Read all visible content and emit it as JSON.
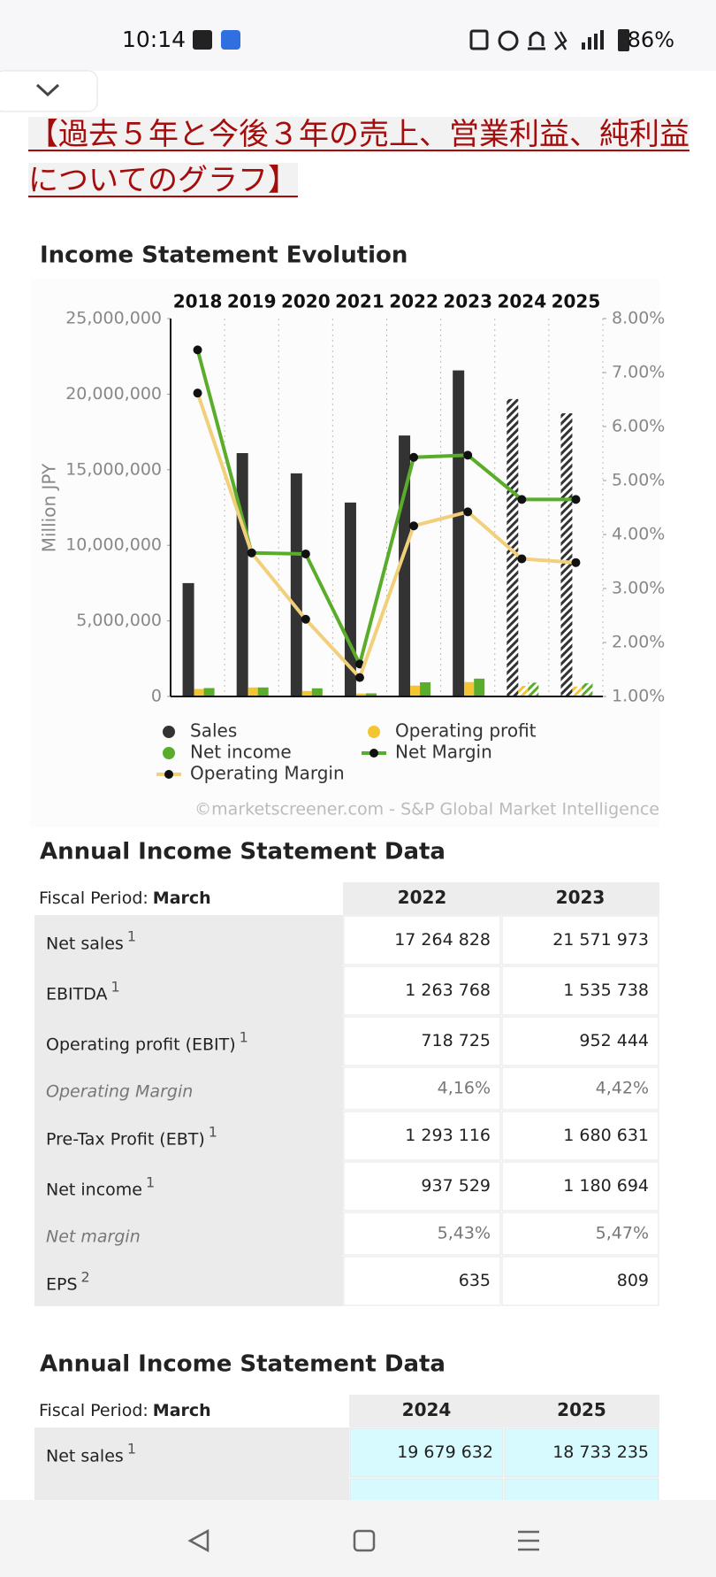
{
  "status_bar": {
    "time": "10:14",
    "battery": "86%"
  },
  "heading": "【過去５年と今後３年の売上、営業利益、純利益についてのグラフ】",
  "chart_data": {
    "type": "bar",
    "title": "Income Statement Evolution",
    "y_label": "Million JPY",
    "categories": [
      "2018",
      "2019",
      "2020",
      "2021",
      "2022",
      "2023",
      "2024",
      "2025"
    ],
    "estimate": [
      false,
      false,
      false,
      false,
      false,
      false,
      true,
      true
    ],
    "ylim": [
      0,
      25000000
    ],
    "yticks": [
      0,
      {
        "value": 5000000,
        "label": "5,000,000"
      },
      {
        "value": 10000000,
        "label": "10,000,000"
      },
      {
        "value": 15000000,
        "label": "15,000,000"
      },
      {
        "value": 20000000,
        "label": "20,000,000"
      },
      {
        "value": 25000000,
        "label": "25,000,000"
      }
    ],
    "y2lim": [
      1,
      8
    ],
    "y2ticks": [
      {
        "value": 1,
        "label": "1.00%"
      },
      {
        "value": 2,
        "label": "2.00%"
      },
      {
        "value": 3,
        "label": "3.00%"
      },
      {
        "value": 4,
        "label": "4.00%"
      },
      {
        "value": 5,
        "label": "5.00%"
      },
      {
        "value": 6,
        "label": "6.00%"
      },
      {
        "value": 7,
        "label": "7.00%"
      },
      {
        "value": 8,
        "label": "8.00%"
      }
    ],
    "series": [
      {
        "name": "Sales",
        "type": "bar",
        "color": "#333333",
        "values": [
          7500000,
          16100000,
          14760000,
          12830000,
          17264828,
          21571973,
          19679632,
          18733235
        ]
      },
      {
        "name": "Operating profit",
        "type": "bar",
        "color": "#f5c431",
        "values": [
          495000,
          596000,
          362000,
          192000,
          718725,
          952444,
          699000,
          656000
        ]
      },
      {
        "name": "Net income",
        "type": "bar",
        "color": "#5aad2a",
        "values": [
          555000,
          596000,
          539000,
          205000,
          937529,
          1180694,
          915000,
          871000
        ]
      },
      {
        "name": "Net Margin",
        "type": "line",
        "axis": "y2",
        "color": "#5aad2a",
        "values": [
          7.42,
          3.66,
          3.64,
          1.6,
          5.43,
          5.47,
          4.65,
          4.65
        ]
      },
      {
        "name": "Operating Margin",
        "type": "line",
        "axis": "y2",
        "color": "#f2cf7a",
        "values": [
          6.62,
          3.66,
          2.43,
          1.35,
          4.16,
          4.42,
          3.55,
          3.48
        ]
      }
    ],
    "source": "©marketscreener.com - S&P Global Market Intelligence"
  },
  "tables": [
    {
      "title": "Annual Income Statement Data",
      "period_label": "Fiscal Period:",
      "period": "March",
      "cell_color": "#ffffff",
      "columns": [
        "2022",
        "2023"
      ],
      "rows": [
        {
          "label": "Net sales",
          "note": "1",
          "values": [
            "17 264 828",
            "21 571 973"
          ]
        },
        {
          "label": "EBITDA",
          "note": "1",
          "values": [
            "1 263 768",
            "1 535 738"
          ]
        },
        {
          "label": "Operating profit (EBIT)",
          "note": "1",
          "values": [
            "718 725",
            "952 444"
          ]
        },
        {
          "label": "Operating Margin",
          "italic": true,
          "values": [
            "4,16%",
            "4,42%"
          ]
        },
        {
          "label": "Pre-Tax Profit (EBT)",
          "note": "1",
          "values": [
            "1 293 116",
            "1 680 631"
          ]
        },
        {
          "label": "Net income",
          "note": "1",
          "values": [
            "937 529",
            "1 180 694"
          ]
        },
        {
          "label": "Net margin",
          "italic": true,
          "values": [
            "5,43%",
            "5,47%"
          ]
        },
        {
          "label": "EPS",
          "note": "2",
          "values": [
            "635",
            "809"
          ]
        }
      ]
    },
    {
      "title": "Annual Income Statement Data",
      "period_label": "Fiscal Period:",
      "period": "March",
      "cell_color": "#d6fafd",
      "columns": [
        "2024",
        "2025"
      ],
      "rows": [
        {
          "label": "Net sales",
          "note": "1",
          "values": [
            "19 679 632",
            "18 733 235"
          ]
        }
      ]
    }
  ]
}
